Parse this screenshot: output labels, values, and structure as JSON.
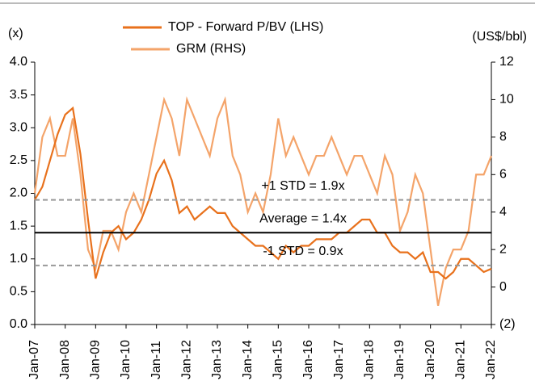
{
  "chart_data": {
    "type": "line",
    "legend": {
      "position": "top"
    },
    "ylabel": "(x)",
    "y2label": "(US$/bbl)",
    "categories": [
      "Jan-07",
      null,
      null,
      null,
      "Jan-08",
      null,
      null,
      null,
      "Jan-09",
      null,
      null,
      null,
      "Jan-10",
      null,
      null,
      null,
      "Jan-11",
      null,
      null,
      null,
      "Jan-12",
      null,
      null,
      null,
      "Jan-13",
      null,
      null,
      null,
      "Jan-14",
      null,
      null,
      null,
      "Jan-15",
      null,
      null,
      null,
      "Jan-16",
      null,
      null,
      null,
      "Jan-17",
      null,
      null,
      null,
      "Jan-18",
      null,
      null,
      null,
      "Jan-19",
      null,
      null,
      null,
      "Jan-20",
      null,
      null,
      null,
      "Jan-21",
      null,
      null,
      null,
      "Jan-22"
    ],
    "series": [
      {
        "name": "TOP - Forward P/BV (LHS)",
        "color": "#e8711c",
        "axis": "y",
        "values": [
          1.9,
          2.1,
          2.5,
          2.9,
          3.2,
          3.3,
          2.6,
          1.6,
          0.7,
          1.1,
          1.4,
          1.5,
          1.3,
          1.4,
          1.6,
          1.9,
          2.3,
          2.5,
          2.2,
          1.7,
          1.8,
          1.6,
          1.7,
          1.8,
          1.7,
          1.7,
          1.5,
          1.4,
          1.3,
          1.2,
          1.2,
          1.1,
          1.0,
          1.2,
          1.1,
          1.2,
          1.2,
          1.3,
          1.3,
          1.3,
          1.4,
          1.4,
          1.5,
          1.6,
          1.6,
          1.4,
          1.4,
          1.2,
          1.1,
          1.1,
          1.0,
          1.1,
          0.8,
          0.8,
          0.7,
          0.8,
          1.0,
          1.0,
          0.9,
          0.8,
          0.85
        ]
      },
      {
        "name": "GRM (RHS)",
        "color": "#f4a46a",
        "axis": "y2",
        "values": [
          5,
          8,
          9,
          7,
          7,
          9,
          6,
          2,
          1,
          3,
          3,
          2,
          4,
          5,
          4,
          6,
          8,
          10,
          9,
          7,
          10,
          9,
          8,
          7,
          9,
          10,
          7,
          6,
          4,
          5,
          4,
          6,
          9,
          7,
          8,
          7,
          6,
          7,
          7,
          8,
          7,
          6,
          7,
          7,
          6,
          5,
          7,
          6,
          3,
          4,
          6,
          5,
          2,
          -1,
          1,
          2,
          2,
          3,
          6,
          6,
          7
        ]
      }
    ],
    "ylim": [
      0,
      4
    ],
    "yticks": [
      {
        "value": 0,
        "label": "0.0"
      },
      0.5,
      {
        "value": 1,
        "label": "1.0"
      },
      1.5,
      {
        "value": 2,
        "label": "2.0"
      },
      2.5,
      {
        "value": 3,
        "label": "3.0"
      },
      3.5,
      {
        "value": 4,
        "label": "4.0"
      }
    ],
    "y2lim": [
      -2,
      12
    ],
    "y2ticks": [
      {
        "value": -2,
        "label": "(2)"
      },
      0,
      2,
      4,
      6,
      8,
      10,
      12
    ],
    "reference_lines": [
      {
        "value": 1.9,
        "label": "+1 STD = 1.9x",
        "style": "dashed",
        "color": "#999999"
      },
      {
        "value": 1.4,
        "label": "Average = 1.4x",
        "style": "solid",
        "color": "#000000"
      },
      {
        "value": 0.9,
        "label": "-1 STD = 0.9x",
        "style": "dashed",
        "color": "#999999"
      }
    ]
  }
}
